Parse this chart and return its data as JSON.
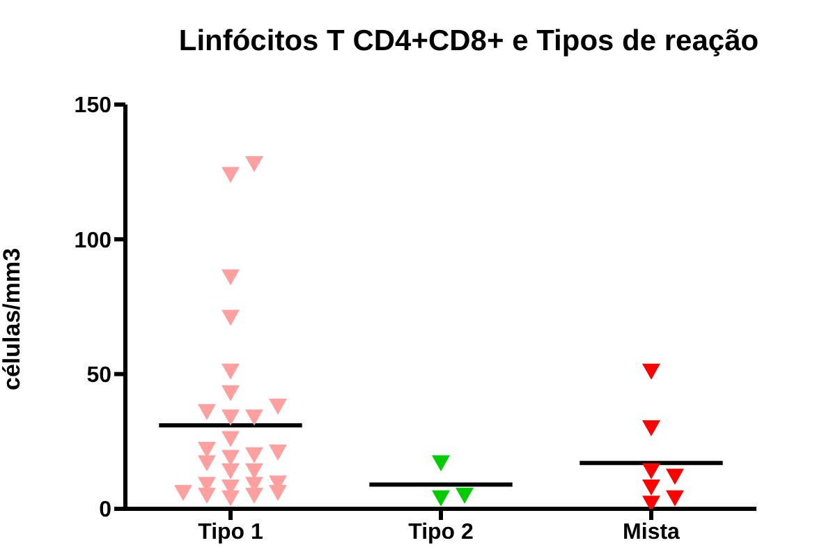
{
  "chart_data": {
    "type": "scatter",
    "title": "Linfócitos T CD4+CD8+  e Tipos de reação",
    "ylabel": "células/mm3",
    "categories": [
      "Tipo 1",
      "Tipo 2",
      "Mista"
    ],
    "series": [
      {
        "color": "#ffa0a0",
        "x": [
          "Tipo 1",
          "Tipo 1",
          "Tipo 1",
          "Tipo 1",
          "Tipo 1",
          "Tipo 1",
          "Tipo 1",
          "Tipo 1",
          "Tipo 1",
          "Tipo 1",
          "Tipo 1",
          "Tipo 1",
          "Tipo 1",
          "Tipo 1",
          "Tipo 1",
          "Tipo 1",
          "Tipo 1",
          "Tipo 1",
          "Tipo 1",
          "Tipo 1",
          "Tipo 1",
          "Tipo 1",
          "Tipo 1",
          "Tipo 1",
          "Tipo 1",
          "Tipo 1",
          "Tipo 1"
        ],
        "values": [
          128,
          124,
          86,
          71,
          51,
          43,
          38,
          34,
          36,
          34,
          26,
          21,
          22,
          19,
          20,
          17,
          14,
          14,
          9.5,
          9,
          8,
          9,
          6,
          5,
          4,
          5,
          6
        ]
      },
      {
        "color": "#00cc00",
        "x": [
          "Tipo 2",
          "Tipo 2",
          "Tipo 2"
        ],
        "values": [
          17,
          4,
          5
        ]
      },
      {
        "color": "#ff0000",
        "x": [
          "Mista",
          "Mista",
          "Mista",
          "Mista",
          "Mista",
          "Mista",
          "Mista"
        ],
        "values": [
          51,
          30,
          14,
          12,
          8,
          2,
          4
        ]
      }
    ],
    "ref_lines": [
      {
        "axis": "y",
        "value": 31,
        "color": "#000000"
      },
      {
        "axis": "y",
        "value": 9,
        "color": "#000000"
      },
      {
        "axis": "y",
        "value": 17,
        "color": "#000000"
      }
    ],
    "marker": "triangle",
    "ylim": [
      0,
      150
    ],
    "yticks": [
      0,
      50,
      100,
      150
    ],
    "grid": false,
    "legend": false
  }
}
